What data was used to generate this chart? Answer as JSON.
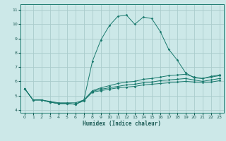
{
  "background_color": "#cce8e8",
  "grid_color": "#aacccc",
  "line_color": "#1a7a6e",
  "xlabel": "Humidex (Indice chaleur)",
  "xlim": [
    -0.5,
    23.5
  ],
  "ylim": [
    3.8,
    11.4
  ],
  "xticks": [
    0,
    1,
    2,
    3,
    4,
    5,
    6,
    7,
    8,
    9,
    10,
    11,
    12,
    13,
    14,
    15,
    16,
    17,
    18,
    19,
    20,
    21,
    22,
    23
  ],
  "yticks": [
    4,
    5,
    6,
    7,
    8,
    9,
    10,
    11
  ],
  "line1_x": [
    0,
    1,
    2,
    3,
    4,
    5,
    6,
    7,
    8,
    9,
    10,
    11,
    12,
    13,
    14,
    15,
    16,
    17,
    18,
    19,
    20,
    21,
    22,
    23
  ],
  "line1_y": [
    5.5,
    4.7,
    4.7,
    4.6,
    4.5,
    4.5,
    4.5,
    4.7,
    7.4,
    8.9,
    9.9,
    10.55,
    10.65,
    10.0,
    10.5,
    10.4,
    9.5,
    8.25,
    7.5,
    6.6,
    6.25,
    6.2,
    6.35,
    6.45
  ],
  "line2_x": [
    0,
    1,
    2,
    3,
    4,
    5,
    6,
    7,
    8,
    9,
    10,
    11,
    12,
    13,
    14,
    15,
    16,
    17,
    18,
    19,
    20,
    21,
    22,
    23
  ],
  "line2_y": [
    5.5,
    4.7,
    4.7,
    4.55,
    4.45,
    4.45,
    4.4,
    4.7,
    5.35,
    5.55,
    5.7,
    5.85,
    5.95,
    6.0,
    6.15,
    6.2,
    6.3,
    6.4,
    6.45,
    6.5,
    6.3,
    6.2,
    6.3,
    6.4
  ],
  "line3_x": [
    0,
    1,
    2,
    3,
    4,
    5,
    6,
    7,
    8,
    9,
    10,
    11,
    12,
    13,
    14,
    15,
    16,
    17,
    18,
    19,
    20,
    21,
    22,
    23
  ],
  "line3_y": [
    5.5,
    4.7,
    4.7,
    4.55,
    4.45,
    4.45,
    4.4,
    4.65,
    5.3,
    5.45,
    5.55,
    5.65,
    5.75,
    5.8,
    5.9,
    5.95,
    6.05,
    6.1,
    6.15,
    6.2,
    6.1,
    6.0,
    6.1,
    6.2
  ],
  "line4_x": [
    0,
    1,
    2,
    3,
    4,
    5,
    6,
    7,
    8,
    9,
    10,
    11,
    12,
    13,
    14,
    15,
    16,
    17,
    18,
    19,
    20,
    21,
    22,
    23
  ],
  "line4_y": [
    5.5,
    4.7,
    4.7,
    4.55,
    4.45,
    4.45,
    4.4,
    4.65,
    5.25,
    5.35,
    5.45,
    5.55,
    5.6,
    5.65,
    5.75,
    5.8,
    5.85,
    5.9,
    5.95,
    6.0,
    5.95,
    5.9,
    5.95,
    6.05
  ]
}
